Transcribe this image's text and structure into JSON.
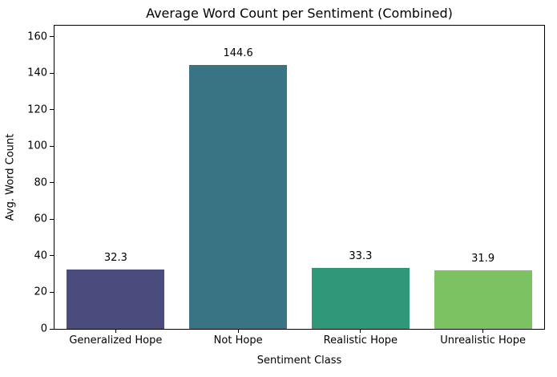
{
  "chart_data": {
    "type": "bar",
    "title": "Average Word Count per Sentiment (Combined)",
    "xlabel": "Sentiment Class",
    "ylabel": "Avg. Word Count",
    "categories": [
      "Generalized Hope",
      "Not Hope",
      "Realistic Hope",
      "Unrealistic Hope"
    ],
    "values": [
      32.3,
      144.6,
      33.3,
      31.9
    ],
    "value_labels": [
      "32.3",
      "144.6",
      "33.3",
      "31.9"
    ],
    "bar_colors": [
      "#4b4c7e",
      "#387483",
      "#2f9878",
      "#7cc162"
    ],
    "yticks": [
      0,
      20,
      40,
      60,
      80,
      100,
      120,
      140,
      160
    ],
    "ylim": [
      0,
      166
    ],
    "bar_width_fraction": 0.8,
    "grid": false,
    "legend_position": "none",
    "background_color": "#ffffff",
    "text_color": "#000000",
    "frame_color": "#000000"
  }
}
